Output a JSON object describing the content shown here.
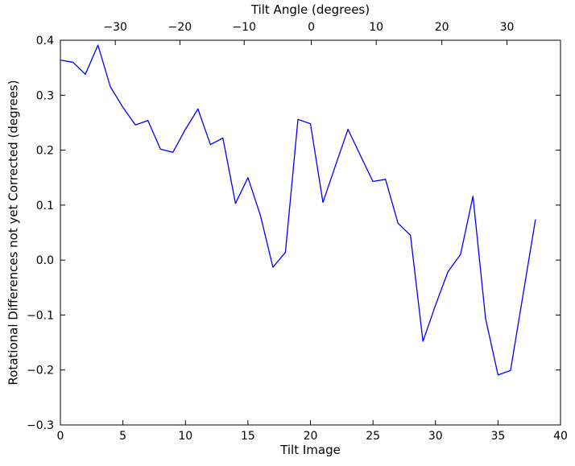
{
  "chart_data": {
    "type": "line",
    "title": "Tilt Angle (degrees)",
    "xlabel": "Tilt Image",
    "ylabel": "Rotational Differences not yet Corrected (degrees)",
    "xlim": [
      0,
      40
    ],
    "ylim": [
      -0.3,
      0.4
    ],
    "grid": false,
    "legend": "none",
    "line_color": "#0000ff",
    "axis_color": "#000000",
    "background_color": "#ffffff",
    "x": [
      0,
      1,
      2,
      3,
      4,
      5,
      6,
      7,
      8,
      9,
      10,
      11,
      12,
      13,
      14,
      15,
      16,
      17,
      18,
      19,
      20,
      21,
      22,
      23,
      24,
      25,
      26,
      27,
      28,
      29,
      30,
      31,
      32,
      33,
      34,
      35,
      36,
      37,
      38
    ],
    "values": [
      0.364,
      0.36,
      0.338,
      0.391,
      0.315,
      0.278,
      0.246,
      0.254,
      0.202,
      0.196,
      0.238,
      0.275,
      0.21,
      0.222,
      0.103,
      0.15,
      0.081,
      -0.013,
      0.014,
      0.256,
      0.248,
      0.105,
      0.172,
      0.238,
      0.19,
      0.143,
      0.147,
      0.067,
      0.045,
      -0.148,
      -0.082,
      -0.021,
      0.01,
      0.116,
      -0.106,
      -0.209,
      -0.201,
      -0.064,
      0.074
    ],
    "xticks": [
      {
        "v": 0,
        "label": "0"
      },
      {
        "v": 5,
        "label": "5"
      },
      {
        "v": 10,
        "label": "10"
      },
      {
        "v": 15,
        "label": "15"
      },
      {
        "v": 20,
        "label": "20"
      },
      {
        "v": 25,
        "label": "25"
      },
      {
        "v": 30,
        "label": "30"
      },
      {
        "v": 35,
        "label": "35"
      },
      {
        "v": 40,
        "label": "40"
      }
    ],
    "yticks": [
      {
        "v": 0.4,
        "label": "0.4"
      },
      {
        "v": 0.3,
        "label": "0.3"
      },
      {
        "v": 0.2,
        "label": "0.2"
      },
      {
        "v": 0.1,
        "label": "0.1"
      },
      {
        "v": 0.0,
        "label": "0.0"
      },
      {
        "v": -0.1,
        "label": "−0.1"
      },
      {
        "v": -0.2,
        "label": "−0.2"
      },
      {
        "v": -0.3,
        "label": "−0.3"
      }
    ],
    "top_axis": {
      "label": "Tilt Angle (degrees)",
      "ticks": [
        {
          "v": 4.39,
          "label": "−30"
        },
        {
          "v": 9.56,
          "label": "−20"
        },
        {
          "v": 14.7,
          "label": "−10"
        },
        {
          "v": 20.07,
          "label": "0"
        },
        {
          "v": 25.26,
          "label": "10"
        },
        {
          "v": 30.51,
          "label": "20"
        },
        {
          "v": 35.72,
          "label": "30"
        }
      ]
    }
  }
}
